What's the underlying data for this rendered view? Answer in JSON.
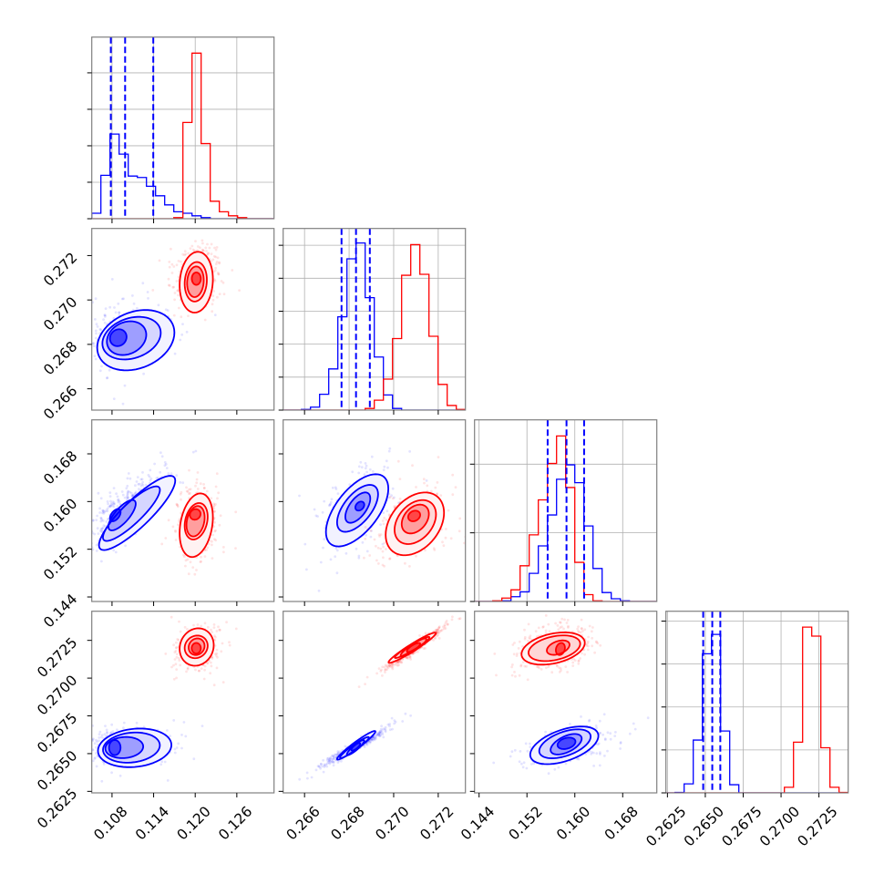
{
  "figure": {
    "kind": "corner plot",
    "background": "#ffffff"
  },
  "chart_data": {
    "type": "corner",
    "title": "",
    "axis_labels": [
      "",
      "",
      "",
      ""
    ],
    "legend": null,
    "grid": "diagonal panels only",
    "parameters": [
      {
        "range": [
          0.10508,
          0.13137
        ],
        "ticks": [
          0.108,
          0.114,
          0.12,
          0.126
        ],
        "tick_labels": [
          "0.108",
          "0.114",
          "0.120",
          "0.126"
        ]
      },
      {
        "range": [
          0.26504,
          0.27322
        ],
        "ticks": [
          0.266,
          0.268,
          0.27,
          0.272
        ],
        "tick_labels": [
          "0.266",
          "0.268",
          "0.270",
          "0.272"
        ]
      },
      {
        "range": [
          0.14324,
          0.1737
        ],
        "ticks": [
          0.144,
          0.152,
          0.16,
          0.168
        ],
        "tick_labels": [
          "0.144",
          "0.152",
          "0.160",
          "0.168"
        ]
      },
      {
        "range": [
          0.2624,
          0.27443
        ],
        "ticks": [
          0.2625,
          0.265,
          0.2675,
          0.27,
          0.2725
        ],
        "tick_labels": [
          "0.2625",
          "0.2650",
          "0.2675",
          "0.2700",
          "0.2725"
        ]
      }
    ],
    "hist_bins": 20,
    "hist_ylim": [
      4.98,
      5.51,
      2.645,
      4.23
    ],
    "hist_ytick_step": 1,
    "contour_levels_sigma": [
      2.0,
      1.5,
      1.0,
      0.5
    ],
    "datasets": [
      {
        "name": "blue",
        "color": "#0000ff",
        "quantiles": [
          [
            0.10783,
            0.10989,
            0.11395
          ],
          [
            0.26766,
            0.26831,
            0.26893
          ],
          [
            0.15546,
            0.15861,
            0.16155
          ],
          [
            0.26486,
            0.26546,
            0.26599
          ]
        ],
        "hist": [
          [
            0.15,
            1.19,
            2.32,
            1.77,
            1.17,
            1.13,
            0.89,
            0.63,
            0.38,
            0.19,
            0.15,
            0.08,
            0.03,
            0,
            0,
            0,
            0,
            0,
            0,
            0
          ],
          [
            0,
            0,
            0.02,
            0.09,
            0.48,
            1.25,
            2.83,
            4.59,
            5.07,
            3.41,
            1.61,
            0.46,
            0.05,
            0,
            0,
            0,
            0,
            0,
            0,
            0
          ],
          [
            0,
            0,
            0,
            0.01,
            0.07,
            0.14,
            0.41,
            0.81,
            1.26,
            1.78,
            1.99,
            1.73,
            1.1,
            0.48,
            0.13,
            0.04,
            0.01,
            0,
            0,
            0
          ],
          [
            0,
            0.01,
            0.21,
            1.23,
            3.24,
            3.69,
            1.44,
            0.19,
            0,
            0,
            0,
            0,
            0,
            0,
            0,
            0,
            0,
            0,
            0,
            0
          ]
        ],
        "scatter_mean": [
          0.1098,
          0.2683,
          0.1586,
          0.26546
        ],
        "scatter_sd": [
          0.0027,
          0.00064,
          0.003,
          0.00056
        ],
        "correlation": [
          [
            1,
            0.3,
            0.8,
            0.15
          ],
          [
            0.3,
            1,
            0.55,
            0.97
          ],
          [
            0.8,
            0.55,
            1,
            0.5
          ],
          [
            0.15,
            0.97,
            0.5,
            1
          ]
        ]
      },
      {
        "name": "red",
        "color": "#ff0000",
        "quantiles": [
          [],
          [],
          [],
          []
        ],
        "hist": [
          [
            0,
            0,
            0,
            0,
            0,
            0,
            0,
            0,
            0,
            0.03,
            2.64,
            4.54,
            2.06,
            0.48,
            0.19,
            0.08,
            0.03,
            0,
            0,
            0
          ],
          [
            0,
            0,
            0,
            0,
            0,
            0,
            0,
            0,
            0,
            0.05,
            0.3,
            0.94,
            2.17,
            4.09,
            5.02,
            4.12,
            2.24,
            0.78,
            0.14,
            0.02
          ],
          [
            0,
            0,
            0.01,
            0.05,
            0.17,
            0.52,
            0.97,
            1.48,
            2.01,
            2.41,
            1.66,
            0.57,
            0.1,
            0.01,
            0,
            0,
            0,
            0,
            0,
            0
          ],
          [
            0,
            0,
            0,
            0,
            0,
            0,
            0,
            0,
            0,
            0,
            0,
            0,
            0,
            0.13,
            1.18,
            3.86,
            3.65,
            1.05,
            0.13,
            0.01
          ]
        ],
        "scatter_mean": [
          0.12035,
          0.27095,
          0.1566,
          0.272
        ],
        "scatter_sd": [
          0.0013,
          0.00061,
          0.0026,
          0.00064
        ],
        "correlation": [
          [
            1,
            0.1,
            0.2,
            0.1
          ],
          [
            0.1,
            1,
            0.3,
            0.97
          ],
          [
            0.2,
            0.3,
            1,
            0.35
          ],
          [
            0.1,
            0.97,
            0.35,
            1
          ]
        ]
      }
    ],
    "contour_format": [
      "center_x",
      "center_y",
      "half_width_x",
      "half_width_y",
      "correlation"
    ],
    "pairs": [
      {
        "x": 0,
        "y": 1,
        "blue": [
          [
            0.11143,
            0.26819,
            0.00557,
            0.00136,
            0.25
          ],
          [
            0.11082,
            0.26828,
            0.00421,
            0.00096,
            0.25
          ],
          [
            0.1101,
            0.26828,
            0.00284,
            0.00076,
            0.2
          ],
          [
            0.1089,
            0.2683,
            0.0012,
            0.00038,
            0.1
          ]
        ],
        "red": [
          [
            0.12015,
            0.2708,
            0.0024,
            0.00137,
            0.1
          ],
          [
            0.12008,
            0.27082,
            0.0016,
            0.00089,
            0.1
          ],
          [
            0.12003,
            0.27082,
            0.0012,
            0.00069,
            0.1
          ],
          [
            0.12016,
            0.27096,
            0.00065,
            0.00028,
            0.0
          ]
        ]
      },
      {
        "x": 0,
        "y": 2,
        "blue": [
          [
            0.11162,
            0.15809,
            0.0055,
            0.00623,
            0.87
          ],
          [
            0.1108,
            0.15797,
            0.00411,
            0.00458,
            0.87
          ],
          [
            0.10945,
            0.15771,
            0.00197,
            0.00255,
            0.75
          ],
          [
            0.10847,
            0.15771,
            0.00077,
            0.00102,
            0.5
          ]
        ],
        "red": [
          [
            0.12015,
            0.15603,
            0.0024,
            0.00534,
            0.25
          ],
          [
            0.12014,
            0.15669,
            0.00166,
            0.00306,
            0.25
          ],
          [
            0.12005,
            0.1567,
            0.00131,
            0.00255,
            0.25
          ],
          [
            0.12,
            0.15784,
            0.00077,
            0.00089,
            0.1
          ]
        ]
      },
      {
        "x": 1,
        "y": 2,
        "blue": [
          [
            0.26836,
            0.15853,
            0.0014,
            0.00606,
            0.6
          ],
          [
            0.26838,
            0.15886,
            0.00092,
            0.00394,
            0.6
          ],
          [
            0.26839,
            0.15898,
            0.00056,
            0.00255,
            0.6
          ],
          [
            0.26848,
            0.15924,
            0.0002,
            0.00076,
            0.3
          ]
        ],
        "red": [
          [
            0.27095,
            0.15626,
            0.00131,
            0.00527,
            0.35
          ],
          [
            0.27097,
            0.15656,
            0.00093,
            0.00369,
            0.35
          ],
          [
            0.27097,
            0.15707,
            0.00061,
            0.00242,
            0.35
          ],
          [
            0.27092,
            0.15758,
            0.00027,
            0.00089,
            0.2
          ]
        ]
      },
      {
        "x": 0,
        "y": 3,
        "blue": [
          [
            0.11127,
            0.26538,
            0.0053,
            0.00128,
            0.15
          ],
          [
            0.1108,
            0.2654,
            0.0041,
            0.001,
            0.15
          ],
          [
            0.10977,
            0.2654,
            0.00273,
            0.0007,
            0.1
          ],
          [
            0.1084,
            0.2654,
            0.00083,
            0.0005,
            0.0
          ]
        ],
        "red": [
          [
            0.12021,
            0.27206,
            0.00246,
            0.00124,
            0.1
          ],
          [
            0.12014,
            0.27207,
            0.00166,
            0.00075,
            0.1
          ],
          [
            0.1202,
            0.27208,
            0.00115,
            0.00055,
            0.1
          ],
          [
            0.12015,
            0.27198,
            0.00066,
            0.00035,
            0.0
          ]
        ]
      },
      {
        "x": 1,
        "y": 3,
        "blue": [
          [
            0.26832,
            0.26555,
            0.00086,
            0.00095,
            0.96
          ],
          [
            0.26824,
            0.2654,
            0.00065,
            0.0007,
            0.95
          ],
          [
            0.26829,
            0.2654,
            0.00039,
            0.0005,
            0.9
          ],
          [
            0.2683,
            0.26545,
            0.0002,
            0.00025,
            0.8
          ]
        ],
        "red": [
          [
            0.27083,
            0.27201,
            0.00106,
            0.001,
            0.96
          ],
          [
            0.27083,
            0.27203,
            0.00078,
            0.0007,
            0.95
          ],
          [
            0.27089,
            0.27203,
            0.00058,
            0.0006,
            0.9
          ],
          [
            0.27089,
            0.27203,
            0.0003,
            0.0003,
            0.8
          ]
        ]
      },
      {
        "x": 2,
        "y": 3,
        "blue": [
          [
            0.15824,
            0.26555,
            0.0057,
            0.00125,
            0.5
          ],
          [
            0.15835,
            0.26565,
            0.0043,
            0.00096,
            0.5
          ],
          [
            0.15855,
            0.26562,
            0.0026,
            0.00068,
            0.55
          ],
          [
            0.15861,
            0.26568,
            0.0015,
            0.00038,
            0.3
          ]
        ],
        "red": [
          [
            0.15638,
            0.27196,
            0.00529,
            0.00107,
            0.35
          ],
          [
            0.15658,
            0.27198,
            0.00432,
            0.00085,
            0.35
          ],
          [
            0.15722,
            0.27202,
            0.0019,
            0.00048,
            0.4
          ],
          [
            0.15759,
            0.27193,
            0.00076,
            0.0004,
            0.2
          ]
        ]
      }
    ]
  }
}
